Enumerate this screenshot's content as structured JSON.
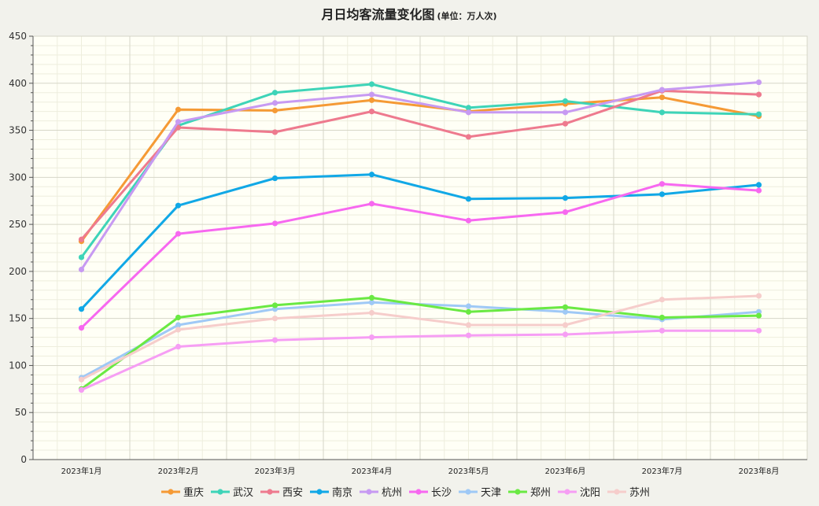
{
  "chart_data": {
    "type": "line",
    "title": "月日均客流量变化图",
    "subtitle": "(单位：万人次)",
    "categories": [
      "2023年1月",
      "2023年2月",
      "2023年3月",
      "2023年4月",
      "2023年5月",
      "2023年6月",
      "2023年7月",
      "2023年8月"
    ],
    "ylim": [
      0,
      450
    ],
    "yticks": [
      0,
      50,
      100,
      150,
      200,
      250,
      300,
      350,
      400,
      450
    ],
    "grid": true,
    "legend_position": "bottom",
    "series": [
      {
        "name": "重庆",
        "color": "#f59a35",
        "values": [
          232,
          372,
          371,
          382,
          370,
          378,
          385,
          365
        ]
      },
      {
        "name": "武汉",
        "color": "#3ed4b8",
        "values": [
          215,
          355,
          390,
          399,
          374,
          381,
          369,
          367
        ]
      },
      {
        "name": "西安",
        "color": "#ee7a8e",
        "values": [
          234,
          353,
          348,
          370,
          343,
          357,
          392,
          388
        ]
      },
      {
        "name": "南京",
        "color": "#11a8e6",
        "values": [
          160,
          270,
          299,
          303,
          277,
          278,
          282,
          292
        ]
      },
      {
        "name": "杭州",
        "color": "#c79af2",
        "values": [
          202,
          359,
          379,
          388,
          369,
          369,
          393,
          401
        ]
      },
      {
        "name": "长沙",
        "color": "#f768f0",
        "values": [
          140,
          240,
          251,
          272,
          254,
          263,
          293,
          286
        ]
      },
      {
        "name": "天津",
        "color": "#9fc9f6",
        "values": [
          87,
          143,
          160,
          167,
          163,
          157,
          149,
          157
        ]
      },
      {
        "name": "郑州",
        "color": "#6ae943",
        "values": [
          75,
          151,
          164,
          172,
          157,
          162,
          151,
          153
        ]
      },
      {
        "name": "沈阳",
        "color": "#f69ef4",
        "values": [
          74,
          120,
          127,
          130,
          132,
          133,
          137,
          137
        ]
      },
      {
        "name": "苏州",
        "color": "#f6cdcb",
        "values": [
          85,
          138,
          150,
          156,
          143,
          143,
          170,
          174
        ]
      }
    ]
  }
}
